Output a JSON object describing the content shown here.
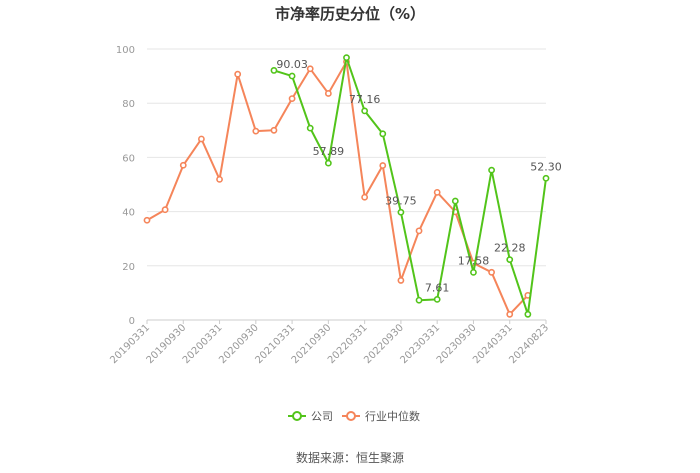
{
  "chart_data": {
    "type": "line",
    "title": "市净率历史分位（%）",
    "ylim": [
      0,
      100
    ],
    "yticks": [
      0,
      20,
      40,
      60,
      80,
      100
    ],
    "x_tick_labels": [
      "20190331",
      "20190930",
      "20200331",
      "20200930",
      "20210331",
      "20210930",
      "20220331",
      "20220930",
      "20230331",
      "20230930",
      "20240331",
      "20240823"
    ],
    "grid": true,
    "legend_position": "bottom",
    "series": [
      {
        "name": "公司",
        "color": "#52c41a",
        "values": [
          null,
          null,
          null,
          null,
          null,
          null,
          null,
          92.1,
          90.03,
          70.8,
          57.89,
          96.8,
          77.16,
          68.7,
          39.75,
          7.3,
          7.61,
          43.9,
          17.58,
          55.3,
          22.28,
          2.1,
          52.3
        ],
        "labels": {
          "8": "90.03",
          "10": "57.89",
          "12": "77.16",
          "14": "39.75",
          "16": "7.61",
          "18": "17.58",
          "20": "22.28",
          "22": "52.30"
        }
      },
      {
        "name": "行业中位数",
        "color": "#f5855a",
        "values": [
          36.8,
          40.7,
          57.1,
          66.8,
          51.9,
          90.7,
          69.7,
          70.0,
          81.7,
          92.7,
          83.6,
          95.3,
          45.3,
          57.0,
          14.6,
          32.9,
          47.1,
          39.9,
          21.0,
          17.6,
          2.1,
          9.1,
          null
        ]
      }
    ]
  },
  "source": "数据来源：恒生聚源"
}
